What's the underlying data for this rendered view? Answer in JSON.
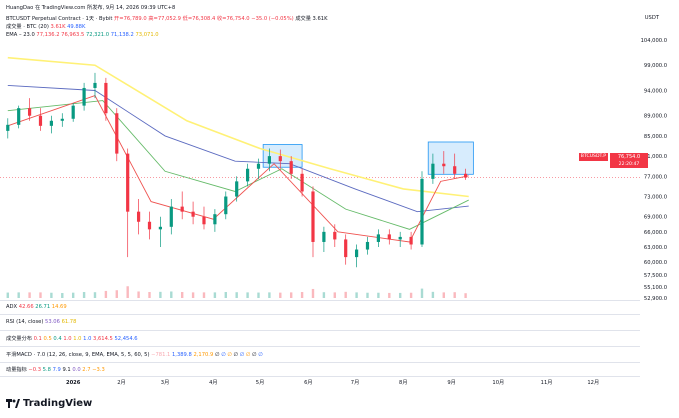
{
  "header": {
    "title": "HuangDao 在 TradingView.com 所发布, 9月 14, 2026 09:39 UTC+8",
    "symbol_line": "BTCUSDT Perpetual Contract · 1天 · Bybit",
    "ohlc": {
      "open": "开=76,789.0",
      "high": "高=77,052.9",
      "low": "低=76,308.4",
      "close": "收=76,754.0",
      "change": "−35.0 (−0.05%)",
      "volume": "成交量 3.61K"
    },
    "vol_line": {
      "label": "成交量 · BTC (20)",
      "v1": "3.61K",
      "v2": "49.88K"
    },
    "ema_line": {
      "label": "EMA – 23.0",
      "v1": "77,136.2",
      "v2": "76,963.5",
      "v3": "72,321.0",
      "v4": "71,138.2",
      "v5": "73,071.0"
    }
  },
  "axis": {
    "currency": "USDT",
    "price_ticks": [
      "104,000.0",
      "99,000.0",
      "94,000.0",
      "89,000.0",
      "85,000.0",
      "81,000.0",
      "77,000.0",
      "73,000.0",
      "69,000.0",
      "66,000.0",
      "63,000.0",
      "60,000.0",
      "57,500.0",
      "55,100.0",
      "52,900.0"
    ],
    "time_ticks": [
      "2026",
      "2月",
      "3月",
      "4月",
      "5月",
      "6月",
      "7月",
      "8月",
      "9月",
      "10月",
      "11月",
      "12月"
    ]
  },
  "price_tag": {
    "symbol": "BTCUSDT.P",
    "price": "76,754.0",
    "countdown": "22:20:47"
  },
  "panes": {
    "adx": {
      "label": "ADX",
      "v1": "42.66",
      "v2": "26.71",
      "v3": "14.69"
    },
    "rsi": {
      "label": "RSI (14, close)",
      "v1": "53.06",
      "v2": "61.78"
    },
    "vol_ind": {
      "label": "成交量分布",
      "vals": [
        "0.1",
        "0.5",
        "0.4",
        "1.0",
        "1.0",
        "1.0",
        "3,614.5",
        "52,454.6"
      ]
    },
    "macd": {
      "label": "平滑MACD · 7.0 (12, 26, close, 9, EMA, EMA, 5, 5, 60, 5)",
      "vals": [
        "1,389.8",
        "2,170.9",
        "∅",
        "∅",
        "∅",
        "∅",
        "∅",
        "∅",
        "∅",
        "∅"
      ],
      "neg": "−781.1"
    },
    "osc": {
      "label": "动量指标",
      "vals": [
        "−0.3",
        "5.8",
        "7.9",
        "9.1",
        "0.0",
        "2.7",
        "−3.3"
      ]
    }
  },
  "branding": {
    "logo_text": "TradingView"
  },
  "colors": {
    "up": "#089981",
    "down": "#f23645",
    "ema_fast": "#f23645",
    "ema_mid": "#4caf50",
    "ema_slow": "#3f51b5",
    "ema_long": "#ffeb3b",
    "box": "#2196f3"
  },
  "chart_data": {
    "type": "candlestick",
    "ylim": [
      52900,
      104000
    ],
    "x_range": [
      "2026-01-01",
      "2026-12-31"
    ],
    "candles": [
      {
        "t": "2025-11-20",
        "o": 86000,
        "h": 88500,
        "l": 84500,
        "c": 87200
      },
      {
        "t": "2025-11-27",
        "o": 87200,
        "h": 91000,
        "l": 86500,
        "c": 90500
      },
      {
        "t": "2025-12-04",
        "o": 90500,
        "h": 92500,
        "l": 88000,
        "c": 89000
      },
      {
        "t": "2025-12-11",
        "o": 89000,
        "h": 90500,
        "l": 86000,
        "c": 87000
      },
      {
        "t": "2025-12-18",
        "o": 87000,
        "h": 89000,
        "l": 85500,
        "c": 88000
      },
      {
        "t": "2025-12-25",
        "o": 88000,
        "h": 89500,
        "l": 86800,
        "c": 88400
      },
      {
        "t": "2026-01-01",
        "o": 88400,
        "h": 91500,
        "l": 87800,
        "c": 91000
      },
      {
        "t": "2026-01-08",
        "o": 91000,
        "h": 95500,
        "l": 90000,
        "c": 94500
      },
      {
        "t": "2026-01-15",
        "o": 94500,
        "h": 97500,
        "l": 92500,
        "c": 95500
      },
      {
        "t": "2026-01-22",
        "o": 95500,
        "h": 96500,
        "l": 88000,
        "c": 89500
      },
      {
        "t": "2026-01-29",
        "o": 89500,
        "h": 90500,
        "l": 80000,
        "c": 81500
      },
      {
        "t": "2026-02-05",
        "o": 81500,
        "h": 82500,
        "l": 61000,
        "c": 70000
      },
      {
        "t": "2026-02-12",
        "o": 70000,
        "h": 72500,
        "l": 65500,
        "c": 68000
      },
      {
        "t": "2026-02-19",
        "o": 68000,
        "h": 70000,
        "l": 64500,
        "c": 66500
      },
      {
        "t": "2026-02-26",
        "o": 66500,
        "h": 69000,
        "l": 63000,
        "c": 67000
      },
      {
        "t": "2026-03-05",
        "o": 67000,
        "h": 72500,
        "l": 65500,
        "c": 71000
      },
      {
        "t": "2026-03-12",
        "o": 71000,
        "h": 74000,
        "l": 68500,
        "c": 70000
      },
      {
        "t": "2026-03-19",
        "o": 70000,
        "h": 72000,
        "l": 67500,
        "c": 69000
      },
      {
        "t": "2026-03-26",
        "o": 69000,
        "h": 71000,
        "l": 66500,
        "c": 67500
      },
      {
        "t": "2026-04-02",
        "o": 67500,
        "h": 70500,
        "l": 66000,
        "c": 69500
      },
      {
        "t": "2026-04-09",
        "o": 69500,
        "h": 74000,
        "l": 68500,
        "c": 73000
      },
      {
        "t": "2026-04-16",
        "o": 73000,
        "h": 77000,
        "l": 72000,
        "c": 76000
      },
      {
        "t": "2026-04-23",
        "o": 76000,
        "h": 79500,
        "l": 75000,
        "c": 78500
      },
      {
        "t": "2026-04-30",
        "o": 78500,
        "h": 80500,
        "l": 76500,
        "c": 79500
      },
      {
        "t": "2026-05-07",
        "o": 79500,
        "h": 82500,
        "l": 78000,
        "c": 81000
      },
      {
        "t": "2026-05-14",
        "o": 81000,
        "h": 82300,
        "l": 78500,
        "c": 80000
      },
      {
        "t": "2026-05-21",
        "o": 80000,
        "h": 81000,
        "l": 76500,
        "c": 77500
      },
      {
        "t": "2026-05-28",
        "o": 77500,
        "h": 78500,
        "l": 73000,
        "c": 74000
      },
      {
        "t": "2026-06-04",
        "o": 74000,
        "h": 75000,
        "l": 61000,
        "c": 64000
      },
      {
        "t": "2026-06-11",
        "o": 64000,
        "h": 67000,
        "l": 62000,
        "c": 66000
      },
      {
        "t": "2026-06-18",
        "o": 66000,
        "h": 67500,
        "l": 63000,
        "c": 64500
      },
      {
        "t": "2026-06-25",
        "o": 64500,
        "h": 65500,
        "l": 59500,
        "c": 61000
      },
      {
        "t": "2026-07-02",
        "o": 61000,
        "h": 63500,
        "l": 59000,
        "c": 62500
      },
      {
        "t": "2026-07-09",
        "o": 62500,
        "h": 65000,
        "l": 61500,
        "c": 64000
      },
      {
        "t": "2026-07-16",
        "o": 64000,
        "h": 66500,
        "l": 63000,
        "c": 65500
      },
      {
        "t": "2026-07-23",
        "o": 65500,
        "h": 66500,
        "l": 63500,
        "c": 64500
      },
      {
        "t": "2026-07-30",
        "o": 64500,
        "h": 66000,
        "l": 63000,
        "c": 65000
      },
      {
        "t": "2026-08-06",
        "o": 65000,
        "h": 66000,
        "l": 62500,
        "c": 63500
      },
      {
        "t": "2026-08-13",
        "o": 63500,
        "h": 78000,
        "l": 63000,
        "c": 76500
      },
      {
        "t": "2026-08-20",
        "o": 76500,
        "h": 81500,
        "l": 75500,
        "c": 79500
      },
      {
        "t": "2026-08-27",
        "o": 79500,
        "h": 82000,
        "l": 77500,
        "c": 79000
      },
      {
        "t": "2026-09-03",
        "o": 79000,
        "h": 81500,
        "l": 76500,
        "c": 77500
      },
      {
        "t": "2026-09-10",
        "o": 77500,
        "h": 78500,
        "l": 76300,
        "c": 76754
      }
    ],
    "ema_fast": [
      [
        "2025-11-20",
        87000
      ],
      [
        "2026-01-15",
        93000
      ],
      [
        "2026-02-20",
        72000
      ],
      [
        "2026-04-01",
        68500
      ],
      [
        "2026-05-10",
        79500
      ],
      [
        "2026-06-20",
        66000
      ],
      [
        "2026-08-05",
        64000
      ],
      [
        "2026-08-25",
        76000
      ],
      [
        "2026-09-12",
        77100
      ]
    ],
    "ema_mid": [
      [
        "2025-11-20",
        90000
      ],
      [
        "2026-01-20",
        92000
      ],
      [
        "2026-03-01",
        78000
      ],
      [
        "2026-04-15",
        74000
      ],
      [
        "2026-05-15",
        78500
      ],
      [
        "2026-06-25",
        70500
      ],
      [
        "2026-08-05",
        66500
      ],
      [
        "2026-09-12",
        72300
      ]
    ],
    "ema_slow": [
      [
        "2025-11-20",
        95000
      ],
      [
        "2026-01-15",
        94000
      ],
      [
        "2026-03-01",
        85000
      ],
      [
        "2026-04-15",
        80000
      ],
      [
        "2026-05-20",
        79500
      ],
      [
        "2026-07-01",
        74500
      ],
      [
        "2026-08-10",
        70000
      ],
      [
        "2026-09-12",
        71100
      ]
    ],
    "ema_long": [
      [
        "2025-11-20",
        100500
      ],
      [
        "2026-01-15",
        99000
      ],
      [
        "2026-03-15",
        88000
      ],
      [
        "2026-05-01",
        82500
      ],
      [
        "2026-06-15",
        78500
      ],
      [
        "2026-08-01",
        74500
      ],
      [
        "2026-09-12",
        73000
      ]
    ],
    "highlight_boxes": [
      {
        "from": "2026-05-03",
        "to": "2026-05-28",
        "low": 78800,
        "high": 83300
      },
      {
        "from": "2026-08-17",
        "to": "2026-09-15",
        "low": 77400,
        "high": 83800
      }
    ],
    "volume_max": 49880
  }
}
